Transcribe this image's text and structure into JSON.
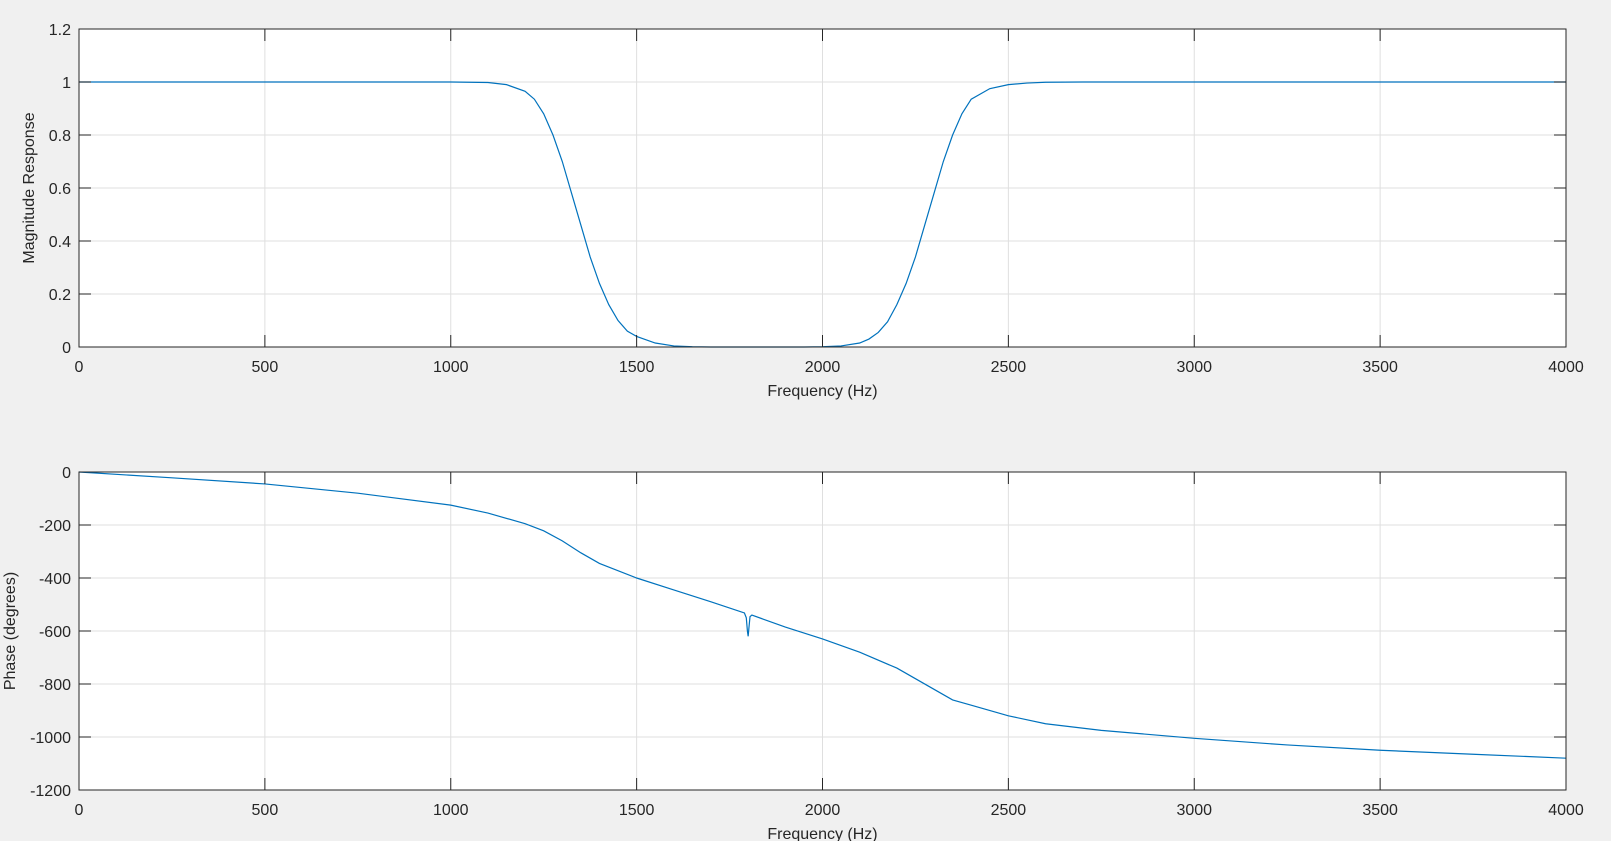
{
  "chart_data": [
    {
      "type": "line",
      "xlabel": "Frequency (Hz)",
      "ylabel": "Magnitude Response",
      "xlim": [
        0,
        4000
      ],
      "ylim": [
        0,
        1.2
      ],
      "xticks": [
        0,
        500,
        1000,
        1500,
        2000,
        2500,
        3000,
        3500,
        4000
      ],
      "yticks": [
        0,
        0.2,
        0.4,
        0.6,
        0.8,
        1,
        1.2
      ],
      "xtick_labels": [
        "0",
        "500",
        "1000",
        "1500",
        "2000",
        "2500",
        "3000",
        "3500",
        "4000"
      ],
      "ytick_labels": [
        "0",
        "0.2",
        "0.4",
        "0.6",
        "0.8",
        "1",
        "1.2"
      ],
      "grid": true,
      "color": "#0072BD",
      "series": [
        {
          "x": [
            0,
            500,
            1000,
            1100,
            1150,
            1200,
            1225,
            1250,
            1275,
            1300,
            1325,
            1350,
            1375,
            1400,
            1425,
            1450,
            1475,
            1500,
            1550,
            1600,
            1650,
            1700,
            1800,
            1900,
            1950,
            2000,
            2050,
            2100,
            2125,
            2150,
            2175,
            2200,
            2225,
            2250,
            2275,
            2300,
            2325,
            2350,
            2375,
            2400,
            2450,
            2500,
            2550,
            2600,
            2700,
            3000,
            3500,
            4000
          ],
          "y": [
            1.0,
            1.0,
            1.0,
            0.998,
            0.99,
            0.965,
            0.935,
            0.88,
            0.8,
            0.7,
            0.58,
            0.46,
            0.34,
            0.24,
            0.16,
            0.1,
            0.06,
            0.04,
            0.015,
            0.004,
            0.001,
            0.0,
            0.0,
            0.0,
            0.0,
            0.001,
            0.004,
            0.015,
            0.03,
            0.055,
            0.095,
            0.16,
            0.24,
            0.34,
            0.46,
            0.58,
            0.7,
            0.8,
            0.88,
            0.935,
            0.975,
            0.99,
            0.996,
            0.999,
            1.0,
            1.0,
            1.0,
            1.0
          ]
        }
      ]
    },
    {
      "type": "line",
      "xlabel": "Frequency (Hz)",
      "ylabel": "Phase (degrees)",
      "xlim": [
        0,
        4000
      ],
      "ylim": [
        -1200,
        0
      ],
      "xticks": [
        0,
        500,
        1000,
        1500,
        2000,
        2500,
        3000,
        3500,
        4000
      ],
      "yticks": [
        -1200,
        -1000,
        -800,
        -600,
        -400,
        -200,
        0
      ],
      "xtick_labels": [
        "0",
        "500",
        "1000",
        "1500",
        "2000",
        "2500",
        "3000",
        "3500",
        "4000"
      ],
      "ytick_labels": [
        "-1200",
        "-1000",
        "-800",
        "-600",
        "-400",
        "-200",
        "0"
      ],
      "grid": true,
      "color": "#0072BD",
      "series": [
        {
          "x": [
            0,
            250,
            500,
            750,
            1000,
            1100,
            1200,
            1250,
            1300,
            1350,
            1400,
            1500,
            1600,
            1700,
            1790,
            1795,
            1798,
            1800,
            1802,
            1805,
            1810,
            1900,
            2000,
            2100,
            2200,
            2250,
            2300,
            2350,
            2400,
            2500,
            2600,
            2750,
            3000,
            3250,
            3500,
            3750,
            4000
          ],
          "y": [
            0,
            -22,
            -45,
            -80,
            -125,
            -155,
            -195,
            -222,
            -260,
            -305,
            -345,
            -400,
            -445,
            -490,
            -532,
            -550,
            -600,
            -620,
            -590,
            -546,
            -540,
            -585,
            -630,
            -680,
            -740,
            -780,
            -820,
            -860,
            -880,
            -920,
            -950,
            -975,
            -1005,
            -1030,
            -1050,
            -1065,
            -1080
          ]
        }
      ]
    }
  ]
}
